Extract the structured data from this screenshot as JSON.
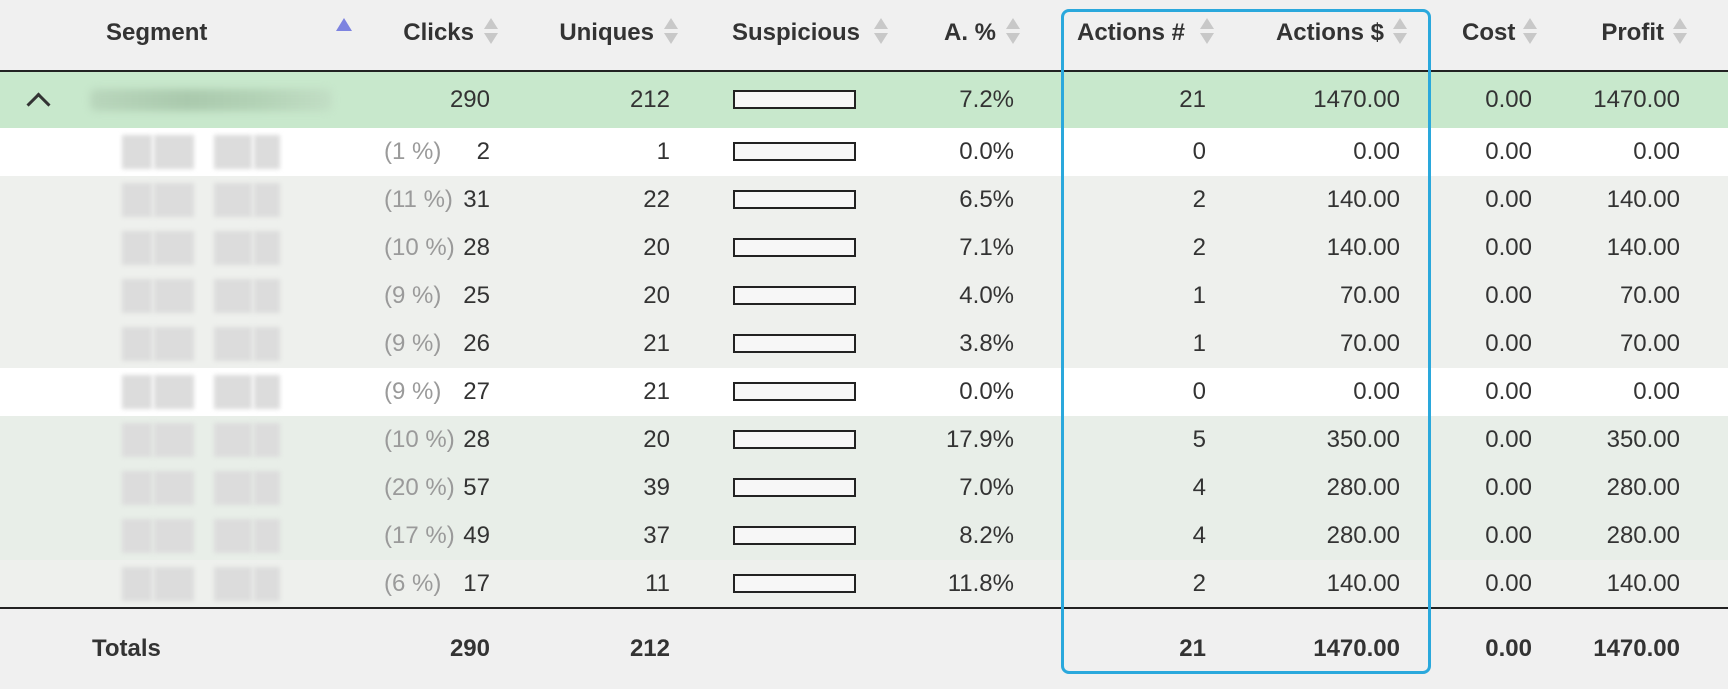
{
  "headers": {
    "segment": "Segment",
    "clicks": "Clicks",
    "uniques": "Uniques",
    "suspicious": "Suspicious",
    "apct": "A. %",
    "actions_n": "Actions #",
    "actions_d": "Actions $",
    "cost": "Cost",
    "profit": "Profit"
  },
  "colors": {
    "main_row": "#c8e8cc",
    "highlight": "#2aa8dc",
    "sort_active": "#7d83e0"
  },
  "main_row": {
    "clicks": "290",
    "uniques": "212",
    "apct": "7.2%",
    "actions_n": "21",
    "actions_d": "1470.00",
    "cost": "0.00",
    "profit": "1470.00"
  },
  "rows": [
    {
      "pct": "(1 %)",
      "clicks": "2",
      "uniques": "1",
      "apct": "0.0%",
      "actions_n": "0",
      "actions_d": "0.00",
      "cost": "0.00",
      "profit": "0.00"
    },
    {
      "pct": "(11 %)",
      "clicks": "31",
      "uniques": "22",
      "apct": "6.5%",
      "actions_n": "2",
      "actions_d": "140.00",
      "cost": "0.00",
      "profit": "140.00"
    },
    {
      "pct": "(10 %)",
      "clicks": "28",
      "uniques": "20",
      "apct": "7.1%",
      "actions_n": "2",
      "actions_d": "140.00",
      "cost": "0.00",
      "profit": "140.00"
    },
    {
      "pct": "(9 %)",
      "clicks": "25",
      "uniques": "20",
      "apct": "4.0%",
      "actions_n": "1",
      "actions_d": "70.00",
      "cost": "0.00",
      "profit": "70.00"
    },
    {
      "pct": "(9 %)",
      "clicks": "26",
      "uniques": "21",
      "apct": "3.8%",
      "actions_n": "1",
      "actions_d": "70.00",
      "cost": "0.00",
      "profit": "70.00"
    },
    {
      "pct": "(9 %)",
      "clicks": "27",
      "uniques": "21",
      "apct": "0.0%",
      "actions_n": "0",
      "actions_d": "0.00",
      "cost": "0.00",
      "profit": "0.00"
    },
    {
      "pct": "(10 %)",
      "clicks": "28",
      "uniques": "20",
      "apct": "17.9%",
      "actions_n": "5",
      "actions_d": "350.00",
      "cost": "0.00",
      "profit": "350.00"
    },
    {
      "pct": "(20 %)",
      "clicks": "57",
      "uniques": "39",
      "apct": "7.0%",
      "actions_n": "4",
      "actions_d": "280.00",
      "cost": "0.00",
      "profit": "280.00"
    },
    {
      "pct": "(17 %)",
      "clicks": "49",
      "uniques": "37",
      "apct": "8.2%",
      "actions_n": "4",
      "actions_d": "280.00",
      "cost": "0.00",
      "profit": "280.00"
    },
    {
      "pct": "(6 %)",
      "clicks": "17",
      "uniques": "11",
      "apct": "11.8%",
      "actions_n": "2",
      "actions_d": "140.00",
      "cost": "0.00",
      "profit": "140.00"
    }
  ],
  "totals": {
    "label": "Totals",
    "clicks": "290",
    "uniques": "212",
    "actions_n": "21",
    "actions_d": "1470.00",
    "cost": "0.00",
    "profit": "1470.00"
  }
}
